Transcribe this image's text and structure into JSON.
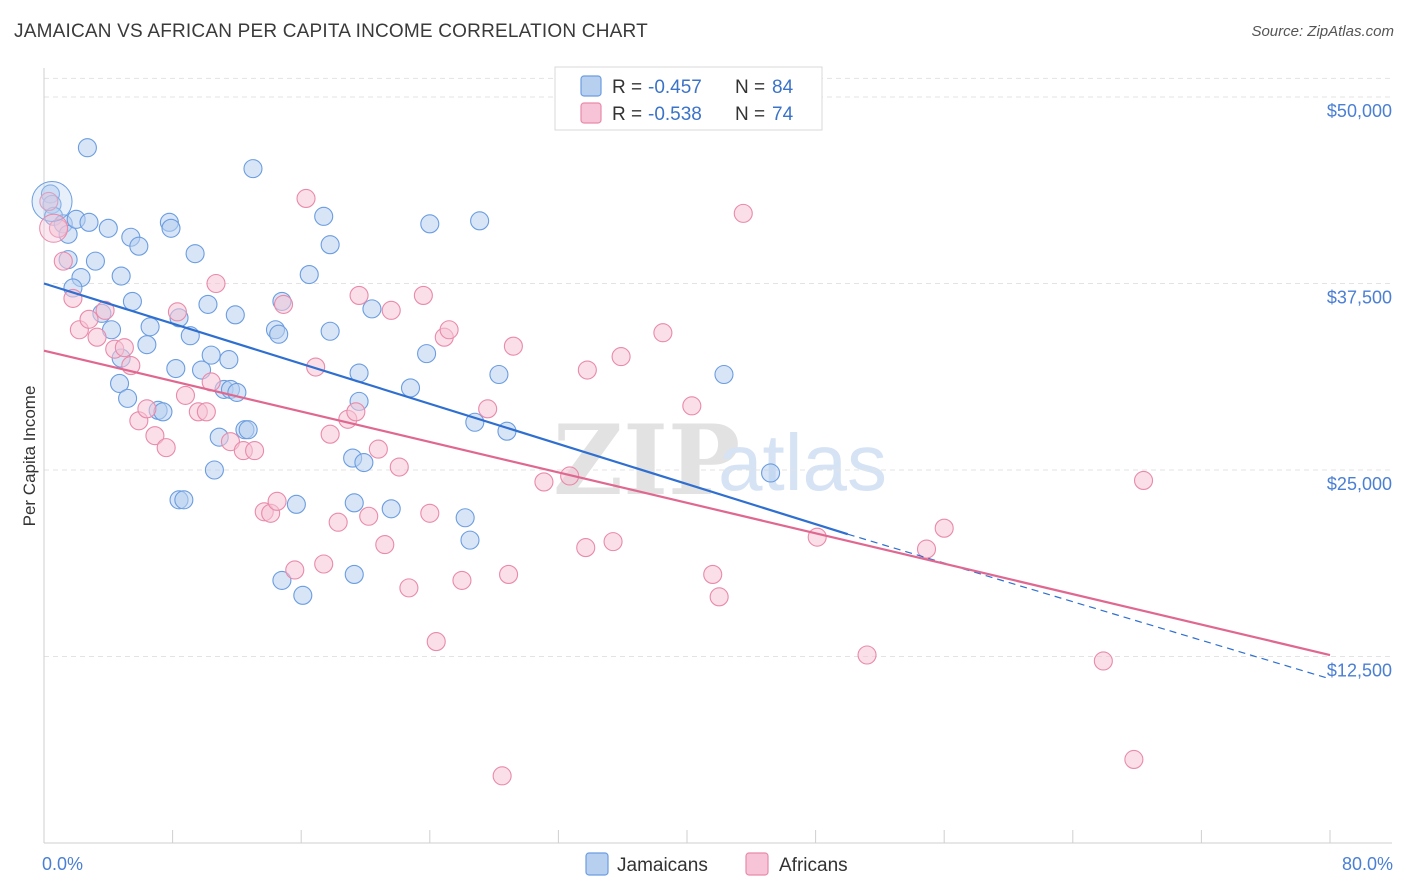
{
  "header": {
    "title": "JAMAICAN VS AFRICAN PER CAPITA INCOME CORRELATION CHART",
    "source": "Source: ZipAtlas.com"
  },
  "legend": {
    "r_label": "R =",
    "n_label": "N =",
    "rows": [
      {
        "r": "-0.457",
        "n": "84"
      },
      {
        "r": "-0.538",
        "n": "74"
      }
    ]
  },
  "watermark": {
    "zip": "ZIP",
    "atlas": "atlas"
  },
  "chart_data": {
    "type": "scatter",
    "title": "JAMAICAN VS AFRICAN PER CAPITA INCOME CORRELATION CHART",
    "xlabel": "",
    "ylabel": "Per Capita Income",
    "xlim": [
      0,
      80
    ],
    "ylim": [
      0,
      50000
    ],
    "x_tick_labels": [
      "0.0%",
      "80.0%"
    ],
    "y_ticks": [
      12500,
      25000,
      37500,
      50000
    ],
    "y_tick_labels": [
      "$12,500",
      "$25,000",
      "$37,500",
      "$50,000"
    ],
    "grid": "horizontal dashed",
    "legend_position": "top-center",
    "series": [
      {
        "name": "Jamaicans",
        "color": "#6b9de0",
        "fill": "#b8d0f0",
        "trend": {
          "x": [
            0,
            50
          ],
          "y": [
            37500,
            20700
          ]
        },
        "trend_dashed": {
          "x": [
            50,
            80
          ],
          "y": [
            20700,
            11000
          ]
        },
        "points": [
          [
            0.4,
            43500
          ],
          [
            0.5,
            42800
          ],
          [
            0.6,
            42000
          ],
          [
            1.2,
            41500
          ],
          [
            1.5,
            40800
          ],
          [
            2,
            41800
          ],
          [
            2.8,
            41600
          ],
          [
            4,
            41200
          ],
          [
            5.4,
            40600
          ],
          [
            5.9,
            40000
          ],
          [
            7.8,
            41600
          ],
          [
            7.9,
            41200
          ],
          [
            9.4,
            39500
          ],
          [
            13,
            45200
          ],
          [
            17.4,
            42000
          ],
          [
            17.8,
            40100
          ],
          [
            24,
            41500
          ],
          [
            27.1,
            41700
          ],
          [
            2.7,
            46600
          ],
          [
            1.5,
            39100
          ],
          [
            3.2,
            39000
          ],
          [
            4.8,
            38000
          ],
          [
            2.3,
            37900
          ],
          [
            1.8,
            37200
          ],
          [
            5.5,
            36300
          ],
          [
            10.2,
            36100
          ],
          [
            8.4,
            35200
          ],
          [
            11.9,
            35400
          ],
          [
            14.8,
            36300
          ],
          [
            16.5,
            38100
          ],
          [
            20.4,
            35800
          ],
          [
            3.6,
            35500
          ],
          [
            4.2,
            34400
          ],
          [
            6.6,
            34600
          ],
          [
            6.4,
            33400
          ],
          [
            9.1,
            34000
          ],
          [
            14.4,
            34400
          ],
          [
            14.6,
            34100
          ],
          [
            17.8,
            34300
          ],
          [
            10.4,
            32700
          ],
          [
            11.5,
            32400
          ],
          [
            8.2,
            31800
          ],
          [
            9.8,
            31700
          ],
          [
            19.6,
            31500
          ],
          [
            4.8,
            32500
          ],
          [
            4.7,
            30800
          ],
          [
            5.2,
            29800
          ],
          [
            7.1,
            29000
          ],
          [
            7.4,
            28900
          ],
          [
            11.2,
            30400
          ],
          [
            11.6,
            30400
          ],
          [
            12.0,
            30200
          ],
          [
            19.6,
            29600
          ],
          [
            22.8,
            30500
          ],
          [
            23.8,
            32800
          ],
          [
            28.3,
            31400
          ],
          [
            42.3,
            31400
          ],
          [
            26.8,
            28200
          ],
          [
            28.8,
            27600
          ],
          [
            12.5,
            27700
          ],
          [
            12.7,
            27700
          ],
          [
            10.9,
            27200
          ],
          [
            19.2,
            25800
          ],
          [
            19.9,
            25500
          ],
          [
            10.6,
            25000
          ],
          [
            45.2,
            24800
          ],
          [
            8.4,
            23000
          ],
          [
            8.7,
            23000
          ],
          [
            15.7,
            22700
          ],
          [
            19.3,
            22800
          ],
          [
            21.6,
            22400
          ],
          [
            26.2,
            21800
          ],
          [
            26.5,
            20300
          ],
          [
            14.8,
            17600
          ],
          [
            16.1,
            16600
          ],
          [
            19.3,
            18000
          ]
        ]
      },
      {
        "name": "Africans",
        "color": "#e98aaa",
        "fill": "#f6c4d6",
        "trend": {
          "x": [
            0,
            80
          ],
          "y": [
            33000,
            12600
          ]
        },
        "points": [
          [
            0.3,
            43000
          ],
          [
            0.9,
            41200
          ],
          [
            1.2,
            39000
          ],
          [
            1.8,
            36500
          ],
          [
            2.2,
            34400
          ],
          [
            2.8,
            35100
          ],
          [
            3.3,
            33900
          ],
          [
            3.8,
            35700
          ],
          [
            4.4,
            33100
          ],
          [
            5.0,
            33200
          ],
          [
            5.4,
            32000
          ],
          [
            5.9,
            28300
          ],
          [
            6.4,
            29100
          ],
          [
            6.9,
            27300
          ],
          [
            7.6,
            26500
          ],
          [
            8.3,
            35600
          ],
          [
            8.8,
            30000
          ],
          [
            9.6,
            28900
          ],
          [
            10.1,
            28900
          ],
          [
            10.4,
            30900
          ],
          [
            10.7,
            37500
          ],
          [
            11.6,
            26900
          ],
          [
            12.4,
            26300
          ],
          [
            13.1,
            26300
          ],
          [
            13.7,
            22200
          ],
          [
            14.1,
            22100
          ],
          [
            14.5,
            22900
          ],
          [
            14.9,
            36100
          ],
          [
            15.6,
            18300
          ],
          [
            16.3,
            43200
          ],
          [
            16.9,
            31900
          ],
          [
            17.4,
            18700
          ],
          [
            17.8,
            27400
          ],
          [
            18.3,
            21500
          ],
          [
            18.9,
            28400
          ],
          [
            19.4,
            28900
          ],
          [
            19.6,
            36700
          ],
          [
            20.2,
            21900
          ],
          [
            20.8,
            26400
          ],
          [
            21.2,
            20000
          ],
          [
            21.6,
            35700
          ],
          [
            22.1,
            25200
          ],
          [
            22.7,
            17100
          ],
          [
            23.6,
            36700
          ],
          [
            24.0,
            22100
          ],
          [
            24.4,
            13500
          ],
          [
            24.9,
            33900
          ],
          [
            25.2,
            34400
          ],
          [
            26.0,
            17600
          ],
          [
            27.6,
            29100
          ],
          [
            28.5,
            4500
          ],
          [
            28.9,
            18000
          ],
          [
            29.2,
            33300
          ],
          [
            31.1,
            24200
          ],
          [
            32.7,
            24600
          ],
          [
            33.7,
            19800
          ],
          [
            33.8,
            31700
          ],
          [
            35.4,
            20200
          ],
          [
            35.9,
            32600
          ],
          [
            38.5,
            34200
          ],
          [
            40.3,
            29300
          ],
          [
            41.6,
            18000
          ],
          [
            42.0,
            16500
          ],
          [
            43.5,
            42200
          ],
          [
            48.1,
            20500
          ],
          [
            51.2,
            12600
          ],
          [
            54.9,
            19700
          ],
          [
            56.0,
            21100
          ],
          [
            65.9,
            12200
          ],
          [
            68.4,
            24300
          ],
          [
            67.8,
            5600
          ]
        ]
      }
    ]
  },
  "bottom_legend": {
    "items": [
      "Jamaicans",
      "Africans"
    ]
  }
}
